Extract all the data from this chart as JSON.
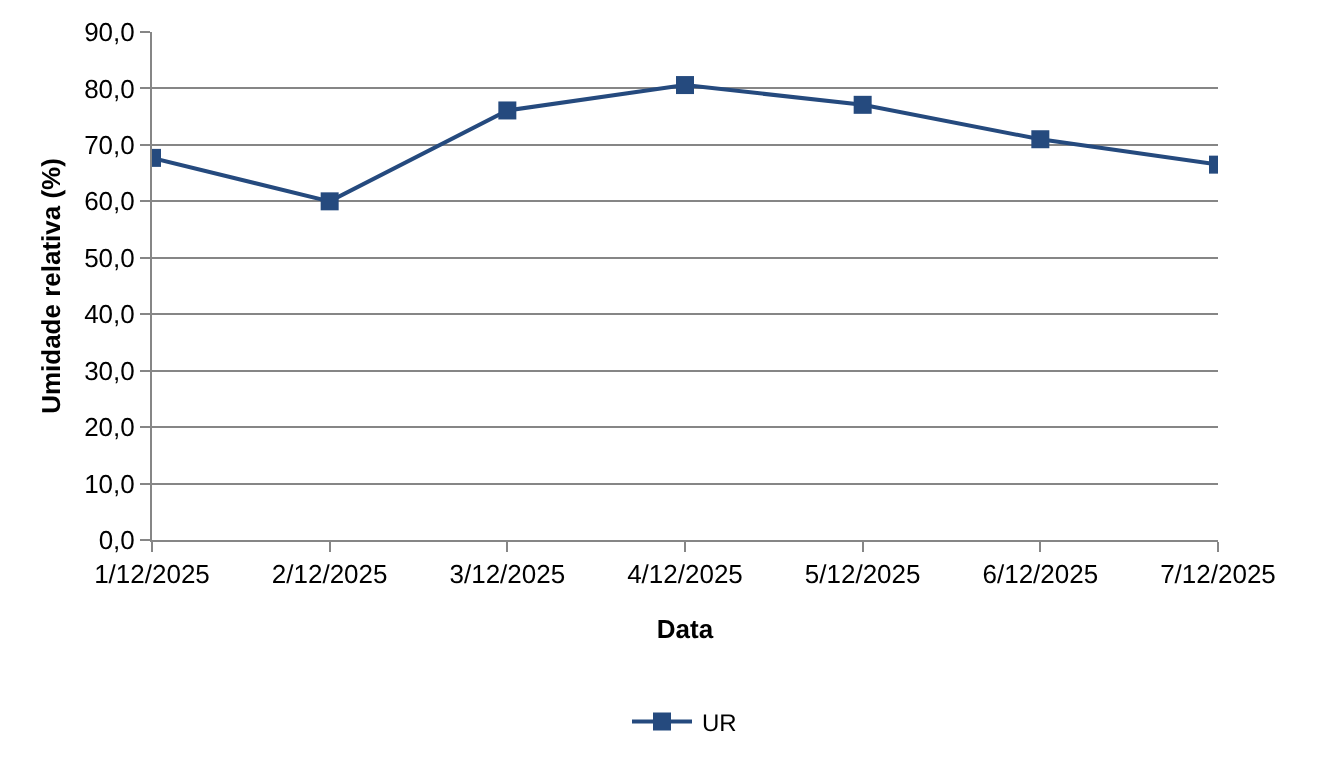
{
  "chart_data": {
    "type": "line",
    "xlabel": "Data",
    "ylabel": "Umidade relativa (%)",
    "categories": [
      "1/12/2025",
      "2/12/2025",
      "3/12/2025",
      "4/12/2025",
      "5/12/2025",
      "6/12/2025",
      "7/12/2025"
    ],
    "series": [
      {
        "name": "UR",
        "color": "#254a7e",
        "values": [
          67.7,
          60.0,
          76.1,
          80.6,
          77.1,
          71.0,
          66.5
        ]
      }
    ],
    "ylim": [
      0,
      90
    ],
    "yticks": [
      {
        "value": 0,
        "label": "0,0"
      },
      {
        "value": 10,
        "label": "10,0"
      },
      {
        "value": 20,
        "label": "20,0"
      },
      {
        "value": 30,
        "label": "30,0"
      },
      {
        "value": 40,
        "label": "40,0"
      },
      {
        "value": 50,
        "label": "50,0"
      },
      {
        "value": 60,
        "label": "60,0"
      },
      {
        "value": 70,
        "label": "70,0"
      },
      {
        "value": 80,
        "label": "80,0"
      },
      {
        "value": 90,
        "label": "90,0"
      }
    ],
    "grid": "y",
    "legend": "bottom",
    "marker": "square",
    "line_style": "solid"
  }
}
